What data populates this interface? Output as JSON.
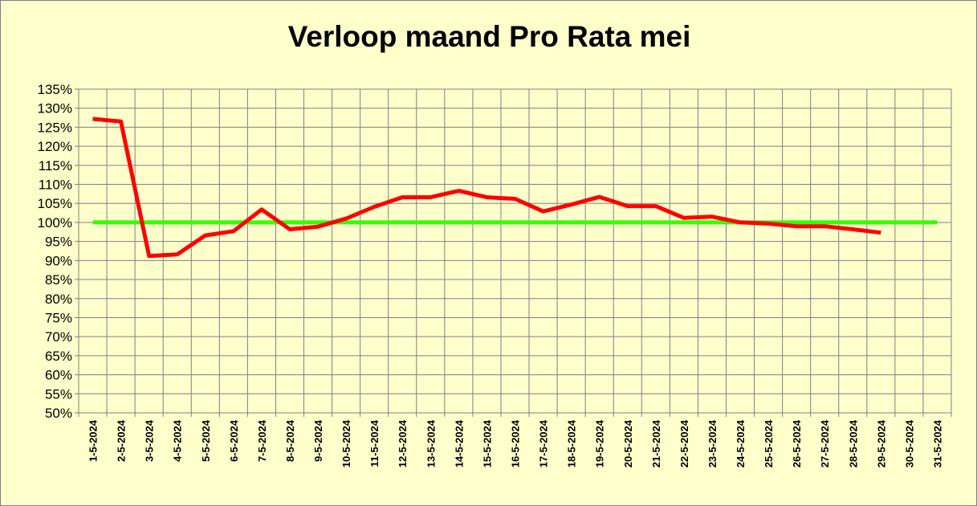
{
  "chart_data": {
    "type": "line",
    "title": "Verloop maand Pro Rata mei",
    "xlabel": "",
    "ylabel": "",
    "ylim": [
      50,
      135
    ],
    "ystep": 5,
    "ytick_suffix": "%",
    "grid": true,
    "legend": "none",
    "categories": [
      "1-5-2024",
      "2-5-2024",
      "3-5-2024",
      "4-5-2024",
      "5-5-2024",
      "6-5-2024",
      "7-5-2024",
      "8-5-2024",
      "9-5-2024",
      "10-5-2024",
      "11-5-2024",
      "12-5-2024",
      "13-5-2024",
      "14-5-2024",
      "15-5-2024",
      "16-5-2024",
      "17-5-2024",
      "18-5-2024",
      "19-5-2024",
      "20-5-2024",
      "21-5-2024",
      "22-5-2024",
      "23-5-2024",
      "24-5-2024",
      "25-5-2024",
      "26-5-2024",
      "27-5-2024",
      "28-5-2024",
      "29-5-2024",
      "30-5-2024",
      "31-5-2024"
    ],
    "series": [
      {
        "color": "#ff0000",
        "values": [
          127.2,
          126.5,
          91.2,
          91.6,
          96.6,
          97.7,
          103.4,
          98.2,
          98.9,
          101.0,
          104.1,
          106.6,
          106.6,
          108.3,
          106.6,
          106.2,
          102.9,
          104.7,
          106.7,
          104.3,
          104.3,
          101.2,
          101.5,
          100.0,
          99.7,
          99.0,
          99.0,
          98.2,
          97.3,
          null,
          null
        ]
      },
      {
        "color": "#33ff00",
        "values": [
          100,
          100,
          100,
          100,
          100,
          100,
          100,
          100,
          100,
          100,
          100,
          100,
          100,
          100,
          100,
          100,
          100,
          100,
          100,
          100,
          100,
          100,
          100,
          100,
          100,
          100,
          100,
          100,
          100,
          100,
          100
        ]
      }
    ]
  }
}
